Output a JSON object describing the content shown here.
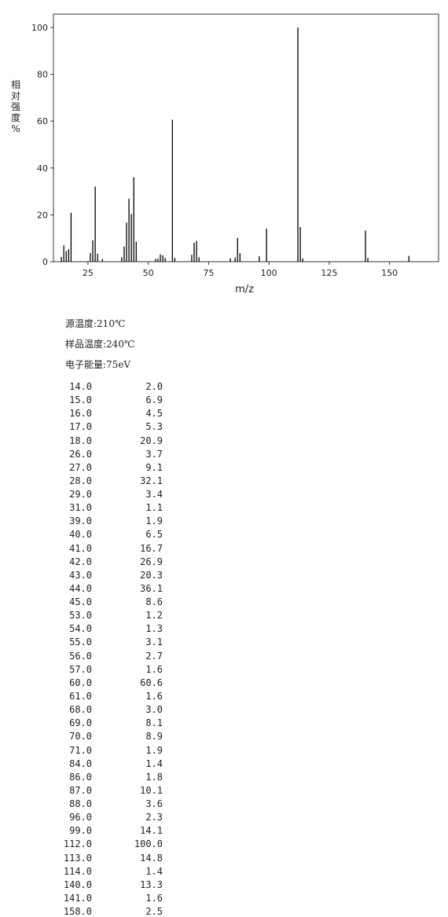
{
  "chart_data": {
    "type": "bar",
    "x_label": "m/z",
    "y_label": "相对强度%",
    "x": [
      14,
      15,
      16,
      17,
      18,
      26,
      27,
      28,
      29,
      31,
      39,
      40,
      41,
      42,
      43,
      44,
      45,
      53,
      54,
      55,
      56,
      57,
      60,
      61,
      68,
      69,
      70,
      71,
      84,
      86,
      87,
      88,
      96,
      99,
      112,
      113,
      114,
      140,
      141,
      158
    ],
    "values": [
      2.0,
      6.9,
      4.5,
      5.3,
      20.9,
      3.7,
      9.1,
      32.1,
      3.4,
      1.1,
      1.9,
      6.5,
      16.7,
      26.9,
      20.3,
      36.1,
      8.6,
      1.2,
      1.3,
      3.1,
      2.7,
      1.6,
      60.6,
      1.6,
      3.0,
      8.1,
      8.9,
      1.9,
      1.4,
      1.8,
      10.1,
      3.6,
      2.3,
      14.1,
      100.0,
      14.8,
      1.4,
      13.3,
      1.6,
      2.5
    ],
    "color": "#000000",
    "xlim": [
      10.7,
      170.3
    ],
    "ylim": [
      0,
      105.7
    ],
    "xticks": [
      25,
      50,
      75,
      100,
      125,
      150
    ],
    "yticks": [
      0,
      20,
      40,
      60,
      80,
      100
    ]
  },
  "info": [
    "源温度:210℃",
    "样品温度:240℃",
    "电子能量:75eV"
  ],
  "table": {
    "rows": [
      [
        "14.0",
        "2.0"
      ],
      [
        "15.0",
        "6.9"
      ],
      [
        "16.0",
        "4.5"
      ],
      [
        "17.0",
        "5.3"
      ],
      [
        "18.0",
        "20.9"
      ],
      [
        "26.0",
        "3.7"
      ],
      [
        "27.0",
        "9.1"
      ],
      [
        "28.0",
        "32.1"
      ],
      [
        "29.0",
        "3.4"
      ],
      [
        "31.0",
        "1.1"
      ],
      [
        "39.0",
        "1.9"
      ],
      [
        "40.0",
        "6.5"
      ],
      [
        "41.0",
        "16.7"
      ],
      [
        "42.0",
        "26.9"
      ],
      [
        "43.0",
        "20.3"
      ],
      [
        "44.0",
        "36.1"
      ],
      [
        "45.0",
        "8.6"
      ],
      [
        "53.0",
        "1.2"
      ],
      [
        "54.0",
        "1.3"
      ],
      [
        "55.0",
        "3.1"
      ],
      [
        "56.0",
        "2.7"
      ],
      [
        "57.0",
        "1.6"
      ],
      [
        "60.0",
        "60.6"
      ],
      [
        "61.0",
        "1.6"
      ],
      [
        "68.0",
        "3.0"
      ],
      [
        "69.0",
        "8.1"
      ],
      [
        "70.0",
        "8.9"
      ],
      [
        "71.0",
        "1.9"
      ],
      [
        "84.0",
        "1.4"
      ],
      [
        "86.0",
        "1.8"
      ],
      [
        "87.0",
        "10.1"
      ],
      [
        "88.0",
        "3.6"
      ],
      [
        "96.0",
        "2.3"
      ],
      [
        "99.0",
        "14.1"
      ],
      [
        "112.0",
        "100.0"
      ],
      [
        "113.0",
        "14.8"
      ],
      [
        "114.0",
        "1.4"
      ],
      [
        "140.0",
        "13.3"
      ],
      [
        "141.0",
        "1.6"
      ],
      [
        "158.0",
        "2.5"
      ]
    ]
  }
}
